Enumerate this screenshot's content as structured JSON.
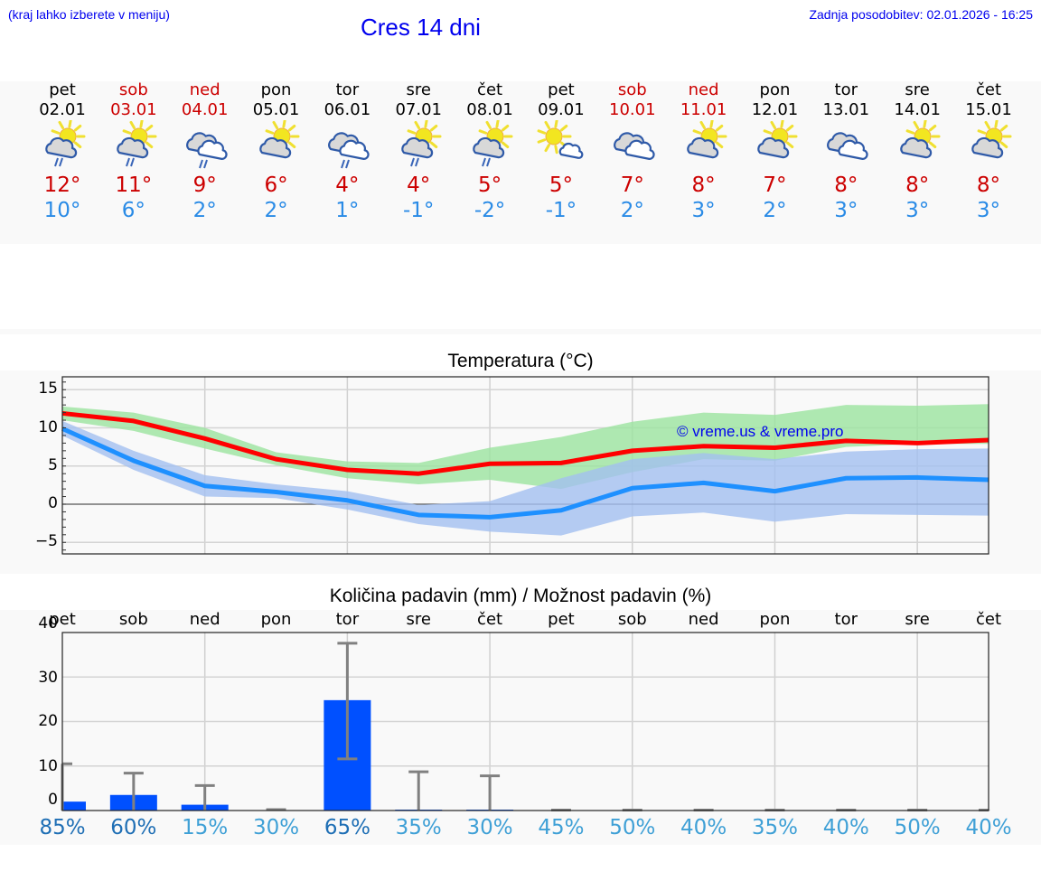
{
  "header": {
    "note": "(kraj lahko izberete v meniju)",
    "title": "Cres 14 dni",
    "last_update": "Zadnja posodobitev: 02.01.2026 - 16:25"
  },
  "colors": {
    "weekday": "#000000",
    "weekend": "#cc0000",
    "tmax": "#cc0000",
    "tmin": "#2a8be6",
    "max_line": "#ff0000",
    "min_line": "#1e90ff",
    "max_band": "#9be39f",
    "min_band": "#a3bff0",
    "bar": "#0050ff",
    "error_bar": "#808080",
    "pct_high": "#1f6fb5",
    "pct_low": "#3fa0d6",
    "watermark": "#0000ee"
  },
  "days": [
    {
      "name": "pet",
      "date": "02.01",
      "weekend": false,
      "icon": "partly-sunny-rain-icon",
      "tmax": "12°",
      "tmin": "10°"
    },
    {
      "name": "sob",
      "date": "03.01",
      "weekend": true,
      "icon": "partly-sunny-rain-icon",
      "tmax": "11°",
      "tmin": "6°"
    },
    {
      "name": "ned",
      "date": "04.01",
      "weekend": true,
      "icon": "cloudy-rain-icon",
      "tmax": "9°",
      "tmin": "2°"
    },
    {
      "name": "pon",
      "date": "05.01",
      "weekend": false,
      "icon": "partly-sunny-icon",
      "tmax": "6°",
      "tmin": "2°"
    },
    {
      "name": "tor",
      "date": "06.01",
      "weekend": false,
      "icon": "cloudy-rain-icon",
      "tmax": "4°",
      "tmin": "1°"
    },
    {
      "name": "sre",
      "date": "07.01",
      "weekend": false,
      "icon": "partly-sunny-rain-icon",
      "tmax": "4°",
      "tmin": "-1°"
    },
    {
      "name": "čet",
      "date": "08.01",
      "weekend": false,
      "icon": "partly-sunny-rain-icon",
      "tmax": "5°",
      "tmin": "-2°"
    },
    {
      "name": "pet",
      "date": "09.01",
      "weekend": false,
      "icon": "mostly-sunny-icon",
      "tmax": "5°",
      "tmin": "-1°"
    },
    {
      "name": "sob",
      "date": "10.01",
      "weekend": true,
      "icon": "cloudy-icon",
      "tmax": "7°",
      "tmin": "2°"
    },
    {
      "name": "ned",
      "date": "11.01",
      "weekend": true,
      "icon": "partly-sunny-icon",
      "tmax": "8°",
      "tmin": "3°"
    },
    {
      "name": "pon",
      "date": "12.01",
      "weekend": false,
      "icon": "partly-sunny-icon",
      "tmax": "7°",
      "tmin": "2°"
    },
    {
      "name": "tor",
      "date": "13.01",
      "weekend": false,
      "icon": "cloudy-icon",
      "tmax": "8°",
      "tmin": "3°"
    },
    {
      "name": "sre",
      "date": "14.01",
      "weekend": false,
      "icon": "partly-sunny-icon",
      "tmax": "8°",
      "tmin": "3°"
    },
    {
      "name": "čet",
      "date": "15.01",
      "weekend": false,
      "icon": "partly-sunny-icon",
      "tmax": "8°",
      "tmin": "3°"
    }
  ],
  "chart_data": [
    {
      "type": "line",
      "title": "Temperatura (°C)",
      "xlabel": "",
      "ylabel": "",
      "ylim": [
        -6.5,
        16.5
      ],
      "yticks": [
        -5,
        0,
        5,
        10,
        15
      ],
      "ytick_labels": [
        "−5",
        "0",
        "5",
        "10",
        "15"
      ],
      "grid": true,
      "categories": [
        "02.01",
        "03.01",
        "04.01",
        "05.01",
        "06.01",
        "07.01",
        "08.01",
        "09.01",
        "10.01",
        "11.01",
        "12.01",
        "13.01",
        "14.01",
        "15.01"
      ],
      "watermark": "© vreme.us & vreme.pro",
      "series": [
        {
          "name": "max",
          "values": [
            11.9,
            10.9,
            8.6,
            5.9,
            4.5,
            4.0,
            5.3,
            5.4,
            7.0,
            7.6,
            7.4,
            8.3,
            8.0,
            8.4
          ]
        },
        {
          "name": "max_band_upper",
          "values": [
            12.8,
            12.0,
            10.0,
            6.8,
            5.6,
            5.4,
            7.4,
            8.8,
            10.8,
            12.0,
            11.7,
            13.0,
            12.9,
            13.1
          ]
        },
        {
          "name": "max_band_lower",
          "values": [
            11.0,
            9.6,
            7.3,
            5.1,
            3.4,
            2.6,
            3.2,
            2.0,
            4.2,
            5.9,
            5.7,
            7.5,
            7.9,
            7.9
          ]
        },
        {
          "name": "min",
          "values": [
            9.9,
            5.7,
            2.4,
            1.6,
            0.5,
            -1.4,
            -1.7,
            -0.8,
            2.1,
            2.8,
            1.7,
            3.4,
            3.5,
            3.2
          ]
        },
        {
          "name": "min_band_upper",
          "values": [
            10.9,
            7.0,
            3.8,
            2.6,
            1.7,
            -0.1,
            0.4,
            3.4,
            5.9,
            6.7,
            5.9,
            6.9,
            7.2,
            7.3
          ]
        },
        {
          "name": "min_band_lower",
          "values": [
            9.0,
            4.5,
            1.0,
            0.8,
            -0.7,
            -2.6,
            -3.6,
            -4.1,
            -1.6,
            -1.1,
            -2.3,
            -1.3,
            -1.4,
            -1.5
          ]
        }
      ]
    },
    {
      "type": "bar",
      "title": "Količina padavin (mm) / Možnost padavin (%)",
      "xlabel": "",
      "ylabel": "",
      "ylim": [
        0,
        40
      ],
      "yticks": [
        0,
        10,
        20,
        30,
        40
      ],
      "ytick_labels": [
        "0",
        "10",
        "20",
        "30",
        "40"
      ],
      "grid": true,
      "categories": [
        "pet",
        "sob",
        "ned",
        "pon",
        "tor",
        "sre",
        "čet",
        "pet",
        "sob",
        "ned",
        "pon",
        "tor",
        "sre",
        "čet"
      ],
      "series": [
        {
          "name": "precip_mm",
          "values": [
            2.0,
            3.5,
            1.3,
            0.0,
            24.8,
            0.2,
            0.2,
            0.0,
            0.0,
            0.0,
            0.0,
            0.0,
            0.0,
            0.0
          ]
        },
        {
          "name": "precip_err_upper",
          "values": [
            10.5,
            8.4,
            5.6,
            0.2,
            37.6,
            8.7,
            7.8,
            0.1,
            0.1,
            0.1,
            0.1,
            0.1,
            0.1,
            0.1
          ]
        },
        {
          "name": "precip_err_lower",
          "values": [
            0,
            0,
            0,
            0,
            11.6,
            0,
            0,
            0,
            0,
            0,
            0,
            0,
            0,
            0
          ]
        },
        {
          "name": "chance_pct",
          "values": [
            85,
            60,
            15,
            30,
            65,
            35,
            30,
            45,
            50,
            40,
            35,
            40,
            50,
            40
          ]
        }
      ],
      "chance_labels": [
        "85%",
        "60%",
        "15%",
        "30%",
        "65%",
        "35%",
        "30%",
        "45%",
        "50%",
        "40%",
        "35%",
        "40%",
        "50%",
        "40%"
      ]
    }
  ]
}
